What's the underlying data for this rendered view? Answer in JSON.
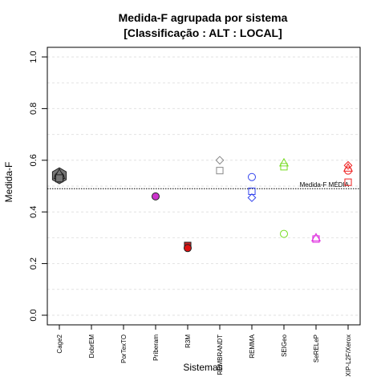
{
  "chart_data": {
    "type": "scatter",
    "title_line1": "Medida-F agrupada por sistema",
    "title_line2": "[Classificação : ALT : LOCAL]",
    "xlabel": "Sistemas",
    "ylabel": "Medida-F",
    "ylim": [
      0.0,
      1.0
    ],
    "yticks": [
      0.0,
      0.2,
      0.4,
      0.6,
      0.8,
      1.0
    ],
    "ytick_labels": [
      "0.0",
      "0.2",
      "0.4",
      "0.6",
      "0.8",
      "1.0"
    ],
    "categories": [
      "Cage2",
      "DobrEM",
      "PorTexTO",
      "Príberam",
      "R3M",
      "REMBRANDT",
      "REMMA",
      "SEIGeo",
      "SeRELeP",
      "XIP-L2F/Xerox"
    ],
    "mean_line": {
      "value": 0.49,
      "label": "Medida-F MÉDIA"
    },
    "grid": "horizontal dashed",
    "points": [
      {
        "category": "Cage2",
        "y": 0.54,
        "shape": "hexagon",
        "color": "#222222",
        "fill": "#777777",
        "size": 2.2
      },
      {
        "category": "Cage2",
        "y": 0.535,
        "shape": "circle",
        "color": "#222222",
        "fill": "#777777",
        "size": 1.3
      },
      {
        "category": "Cage2",
        "y": 0.545,
        "shape": "triangle",
        "color": "#222222",
        "fill": "#777777",
        "size": 1.3
      },
      {
        "category": "Cage2",
        "y": 0.53,
        "shape": "square",
        "color": "#222222",
        "fill": "#777777",
        "size": 1.1
      },
      {
        "category": "Príberam",
        "y": 0.46,
        "shape": "circle",
        "color": "#222222",
        "fill": "#cc33cc",
        "size": 1.0
      },
      {
        "category": "R3M",
        "y": 0.27,
        "shape": "square",
        "color": "#222222",
        "fill": "#cc2222",
        "size": 1.0
      },
      {
        "category": "R3M",
        "y": 0.26,
        "shape": "circle",
        "color": "#222222",
        "fill": "#dd1111",
        "size": 1.0
      },
      {
        "category": "REMBRANDT",
        "y": 0.6,
        "shape": "diamond",
        "color": "#888888",
        "fill": "none",
        "size": 1.0
      },
      {
        "category": "REMBRANDT",
        "y": 0.56,
        "shape": "square",
        "color": "#888888",
        "fill": "none",
        "size": 1.0
      },
      {
        "category": "REMMA",
        "y": 0.535,
        "shape": "circle",
        "color": "#3344ee",
        "fill": "none",
        "size": 1.0
      },
      {
        "category": "REMMA",
        "y": 0.48,
        "shape": "square",
        "color": "#3344ee",
        "fill": "none",
        "size": 1.0
      },
      {
        "category": "REMMA",
        "y": 0.455,
        "shape": "diamond",
        "color": "#3344ee",
        "fill": "none",
        "size": 1.0
      },
      {
        "category": "SEIGeo",
        "y": 0.59,
        "shape": "triangle",
        "color": "#77dd22",
        "fill": "none",
        "size": 1.0
      },
      {
        "category": "SEIGeo",
        "y": 0.575,
        "shape": "square",
        "color": "#77dd22",
        "fill": "none",
        "size": 1.0
      },
      {
        "category": "SEIGeo",
        "y": 0.315,
        "shape": "circle",
        "color": "#77dd22",
        "fill": "none",
        "size": 1.0
      },
      {
        "category": "SeRELeP",
        "y": 0.295,
        "shape": "square",
        "color": "#dd22dd",
        "fill": "none",
        "size": 1.0
      },
      {
        "category": "SeRELeP",
        "y": 0.3,
        "shape": "triangle",
        "color": "#dd22dd",
        "fill": "none",
        "size": 1.0
      },
      {
        "category": "XIP-L2F/Xerox",
        "y": 0.58,
        "shape": "diamond",
        "color": "#ee2222",
        "fill": "none",
        "size": 1.0
      },
      {
        "category": "XIP-L2F/Xerox",
        "y": 0.57,
        "shape": "triangle",
        "color": "#ee2222",
        "fill": "none",
        "size": 1.0
      },
      {
        "category": "XIP-L2F/Xerox",
        "y": 0.56,
        "shape": "circle",
        "color": "#ee2222",
        "fill": "none",
        "size": 1.0
      },
      {
        "category": "XIP-L2F/Xerox",
        "y": 0.515,
        "shape": "square",
        "color": "#ee2222",
        "fill": "none",
        "size": 1.0
      }
    ]
  }
}
